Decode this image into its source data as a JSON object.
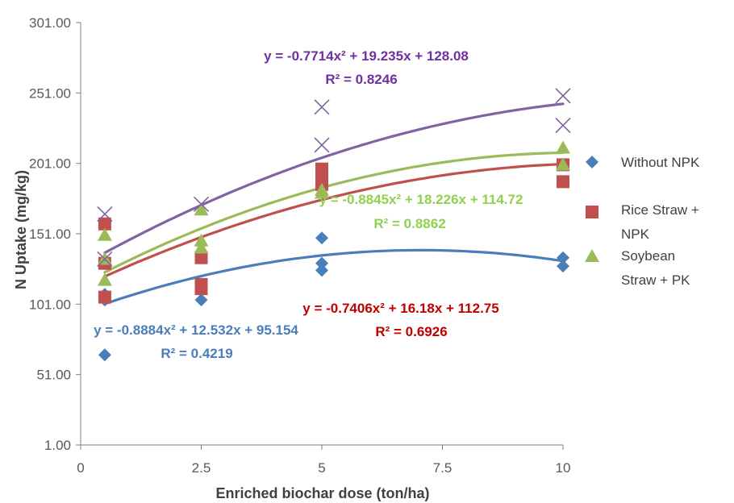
{
  "chart_data": {
    "type": "scatter",
    "xlabel": "Enriched biochar dose (ton/ha)",
    "ylabel": "N Uptake (mg/kg)",
    "xlim": [
      0,
      10
    ],
    "ylim": [
      1,
      301
    ],
    "x_ticks": [
      "0",
      "2.5",
      "5",
      "7.5",
      "10"
    ],
    "y_ticks": [
      "1.00",
      "51.00",
      "101.00",
      "151.00",
      "201.00",
      "251.00",
      "301.00"
    ],
    "grid": false,
    "legend_position": "right",
    "series": [
      {
        "name": "Without NPK",
        "color": "#4A7EBB",
        "marker": "diamond",
        "points": [
          [
            0.5,
            65
          ],
          [
            0.5,
            104
          ],
          [
            0.5,
            108
          ],
          [
            2.5,
            104
          ],
          [
            5,
            148
          ],
          [
            5,
            130
          ],
          [
            5,
            125
          ],
          [
            10,
            134
          ],
          [
            10,
            128
          ]
        ],
        "trendline": {
          "a": -0.8884,
          "b": 12.532,
          "c": 95.154
        },
        "equation": "y = -0.8884x² + 12.532x + 95.154",
        "r2": "R² = 0.4219"
      },
      {
        "name": "Rice Straw + NPK",
        "color": "#C0504D",
        "marker": "square",
        "points": [
          [
            0.5,
            158
          ],
          [
            0.5,
            130
          ],
          [
            0.5,
            106
          ],
          [
            2.5,
            134
          ],
          [
            2.5,
            115
          ],
          [
            2.5,
            112
          ],
          [
            5,
            197
          ],
          [
            5,
            191
          ],
          [
            5,
            186
          ],
          [
            10,
            188
          ],
          [
            10,
            200
          ]
        ],
        "trendline": {
          "a": -0.7406,
          "b": 16.18,
          "c": 112.75
        },
        "equation": "y = -0.7406x² + 16.18x + 112.75",
        "r2": "R² = 0.6926"
      },
      {
        "name": "Soybean Straw + PK",
        "color": "#9BBB59",
        "marker": "triangle",
        "points": [
          [
            0.5,
            150
          ],
          [
            0.5,
            133
          ],
          [
            0.5,
            118
          ],
          [
            2.5,
            168
          ],
          [
            2.5,
            146
          ],
          [
            2.5,
            141
          ],
          [
            5,
            182
          ],
          [
            5,
            180
          ],
          [
            10,
            212
          ],
          [
            10,
            200
          ]
        ],
        "trendline": {
          "a": -0.8845,
          "b": 18.226,
          "c": 114.72
        },
        "equation": "y = -0.8845x² + 18.226x + 114.72",
        "r2": "R² = 0.8862"
      },
      {
        "name": "",
        "color": "#8064A2",
        "marker": "x",
        "points": [
          [
            0.5,
            165
          ],
          [
            0.5,
            133
          ],
          [
            2.5,
            172
          ],
          [
            5,
            241
          ],
          [
            5,
            214
          ],
          [
            10,
            249
          ],
          [
            10,
            228
          ]
        ],
        "trendline": {
          "a": -0.7714,
          "b": 19.235,
          "c": 128.08
        },
        "equation": "y = -0.7714x² + 19.235x + 128.08",
        "r2": "R² = 0.8246"
      }
    ]
  },
  "legend": {
    "items": [
      {
        "marker": "diamond",
        "color": "#4A7EBB",
        "lines": [
          "Without NPK"
        ]
      },
      {
        "marker": "square",
        "color": "#C0504D",
        "lines": [
          "Rice Straw +",
          "NPK"
        ]
      },
      {
        "marker": "triangle",
        "color": "#9BBB59",
        "lines": [
          "Soybean",
          "Straw + PK"
        ]
      }
    ]
  },
  "colors": {
    "axis": "#808080",
    "equation_text": [
      "#4A7EBB",
      "#C00000",
      "#92D050",
      "#7030A0"
    ]
  }
}
